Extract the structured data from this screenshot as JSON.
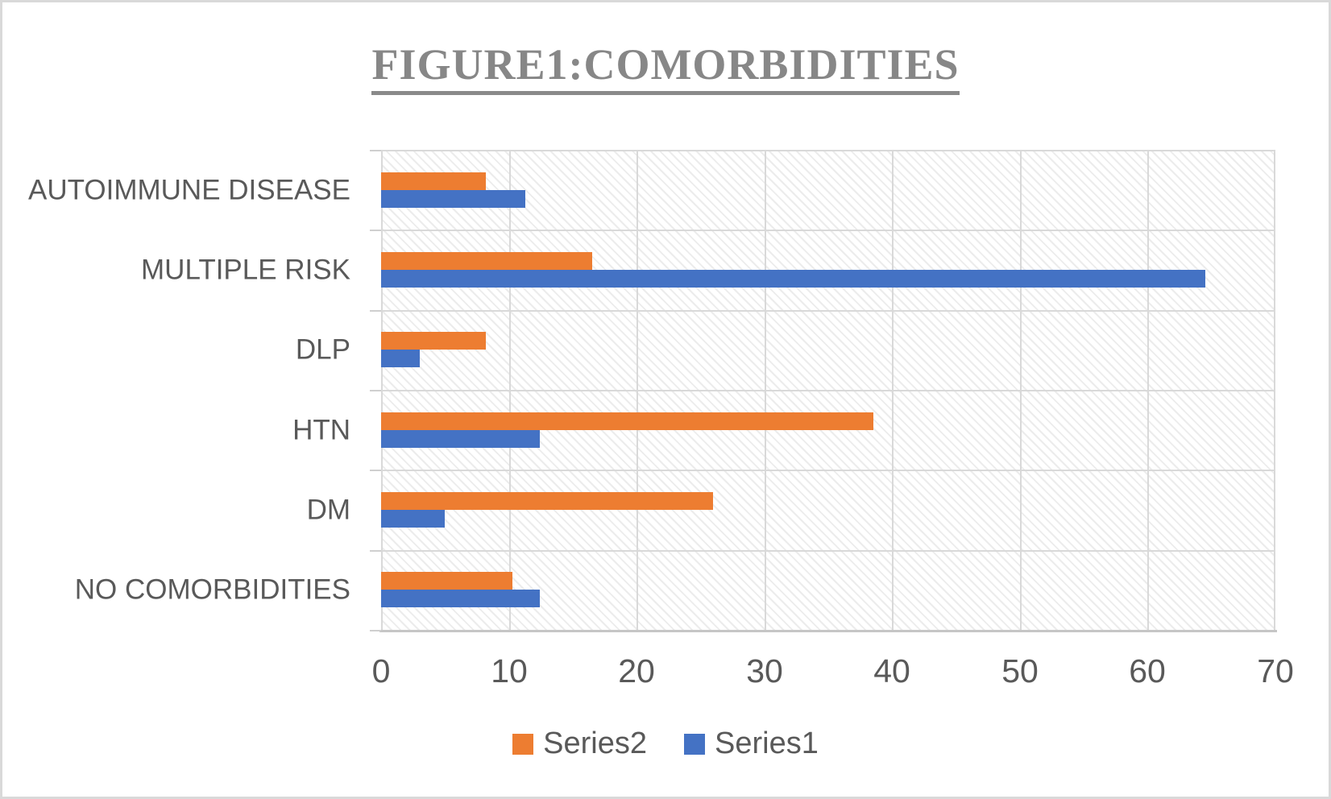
{
  "window": {
    "background": "#ffffff",
    "border_color": "#d9d9d9"
  },
  "chart_data": {
    "type": "bar",
    "orientation": "horizontal",
    "title": "FIGURE1:COMORBIDITIES",
    "title_color": "#878787",
    "title_underlined": true,
    "categories": [
      "AUTOIMMUNE DISEASE",
      "MULTIPLE RISK",
      "DLP",
      "HTN",
      "DM",
      "NO COMORBIDITIES"
    ],
    "categories_order": "top-to-bottom",
    "series": [
      {
        "name": "Series2",
        "color": "#ED7D31",
        "values": [
          8.2,
          16.5,
          8.2,
          38.5,
          26.0,
          10.3
        ]
      },
      {
        "name": "Series1",
        "color": "#4472C4",
        "values": [
          11.3,
          64.5,
          3.0,
          12.4,
          5.0,
          12.4
        ]
      }
    ],
    "x_axis": {
      "min": 0,
      "max": 70,
      "tick_interval": 10,
      "tick_labels": [
        "0",
        "10",
        "20",
        "30",
        "40",
        "50",
        "60",
        "70"
      ],
      "label_color": "#595959"
    },
    "legend": {
      "position": "bottom",
      "entries": [
        {
          "label": "Series2",
          "color": "#ED7D31"
        },
        {
          "label": "Series1",
          "color": "#4472C4"
        }
      ]
    },
    "grid": true,
    "gridline_color": "#d9d9d9",
    "plot_background": "light-downward-diagonal-hatch",
    "text_color": "#595959"
  }
}
